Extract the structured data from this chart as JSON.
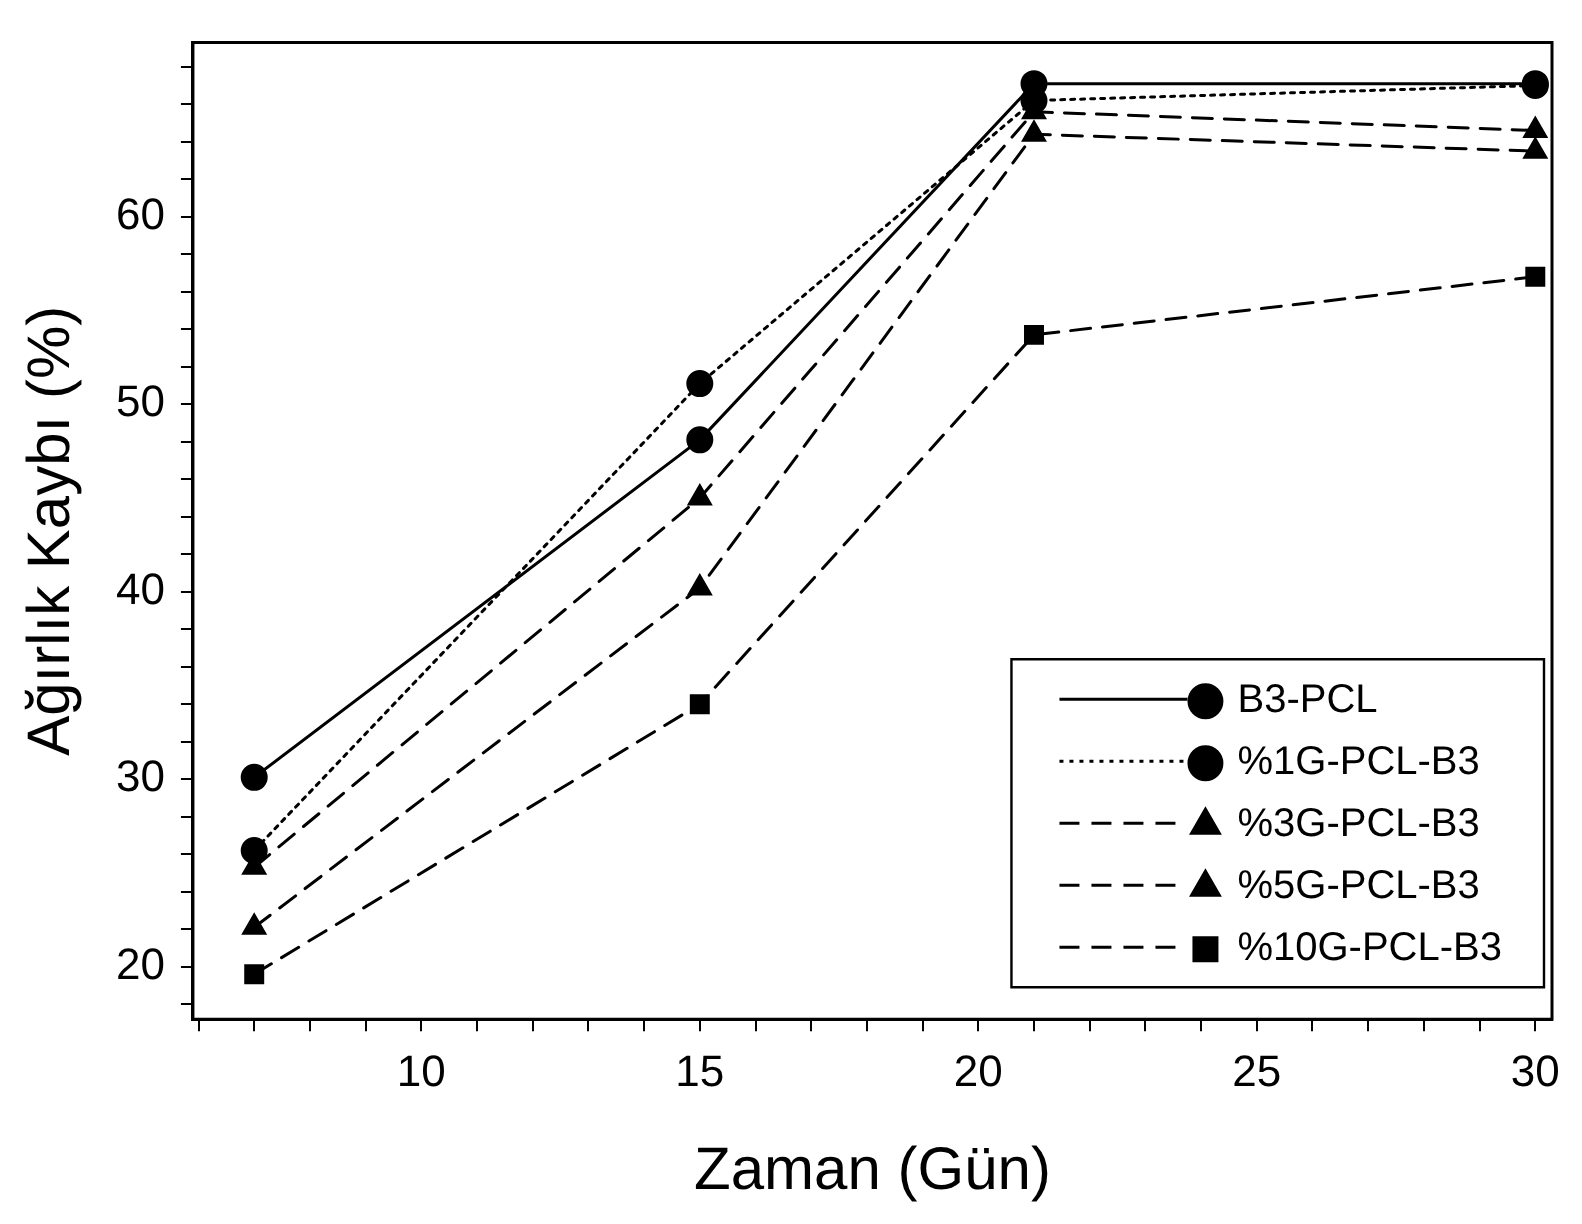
{
  "chart_data": {
    "type": "line",
    "xlabel": "Zaman (Gün)",
    "ylabel": "Ağırlık Kaybı (%)",
    "x": [
      7,
      15,
      21,
      30
    ],
    "series": [
      {
        "name": "B3-PCL",
        "color": "#000000",
        "marker": "circle",
        "line_style": "solid",
        "values": [
          30.1,
          48.1,
          67.1,
          67.1
        ]
      },
      {
        "name": "%1G-PCL-B3",
        "color": "#000000",
        "marker": "circle",
        "line_style": "dotted",
        "values": [
          26.2,
          51.1,
          66.2,
          67.0
        ]
      },
      {
        "name": "%3G-PCL-B3",
        "color": "#000000",
        "marker": "triangle",
        "line_style": "dashed",
        "values": [
          25.3,
          45.0,
          65.6,
          64.6
        ]
      },
      {
        "name": "%5G-PCL-B3",
        "color": "#000000",
        "marker": "triangle",
        "line_style": "dashed",
        "values": [
          22.1,
          40.2,
          64.4,
          63.5
        ]
      },
      {
        "name": "%10G-PCL-B3",
        "color": "#000000",
        "marker": "square",
        "line_style": "dashed",
        "values": [
          19.6,
          34.0,
          53.7,
          56.8
        ]
      }
    ],
    "xlim": [
      5.9,
      30.3
    ],
    "xticks": [
      {
        "value": 6,
        "label": null
      },
      {
        "value": 7,
        "label": null
      },
      {
        "value": 8,
        "label": null
      },
      {
        "value": 9,
        "label": null
      },
      10,
      {
        "value": 11,
        "label": null
      },
      {
        "value": 12,
        "label": null
      },
      {
        "value": 13,
        "label": null
      },
      {
        "value": 14,
        "label": null
      },
      15,
      {
        "value": 16,
        "label": null
      },
      {
        "value": 17,
        "label": null
      },
      {
        "value": 18,
        "label": null
      },
      {
        "value": 19,
        "label": null
      },
      20,
      {
        "value": 21,
        "label": null
      },
      {
        "value": 22,
        "label": null
      },
      {
        "value": 23,
        "label": null
      },
      {
        "value": 24,
        "label": null
      },
      25,
      {
        "value": 26,
        "label": null
      },
      {
        "value": 27,
        "label": null
      },
      {
        "value": 28,
        "label": null
      },
      {
        "value": 29,
        "label": null
      },
      30
    ],
    "ylim": [
      17.2,
      69.3
    ],
    "yticks": [
      {
        "value": 18,
        "label": null
      },
      20,
      {
        "value": 22,
        "label": null
      },
      {
        "value": 24,
        "label": null
      },
      {
        "value": 26,
        "label": null
      },
      {
        "value": 28,
        "label": null
      },
      30,
      {
        "value": 32,
        "label": null
      },
      {
        "value": 34,
        "label": null
      },
      {
        "value": 36,
        "label": null
      },
      {
        "value": 38,
        "label": null
      },
      40,
      {
        "value": 42,
        "label": null
      },
      {
        "value": 44,
        "label": null
      },
      {
        "value": 46,
        "label": null
      },
      {
        "value": 48,
        "label": null
      },
      50,
      {
        "value": 52,
        "label": null
      },
      {
        "value": 54,
        "label": null
      },
      {
        "value": 56,
        "label": null
      },
      {
        "value": 58,
        "label": null
      },
      60,
      {
        "value": 62,
        "label": null
      },
      {
        "value": 64,
        "label": null
      },
      {
        "value": 66,
        "label": null
      },
      {
        "value": 68,
        "label": null
      }
    ],
    "grid": false,
    "legend": "bottom right"
  }
}
